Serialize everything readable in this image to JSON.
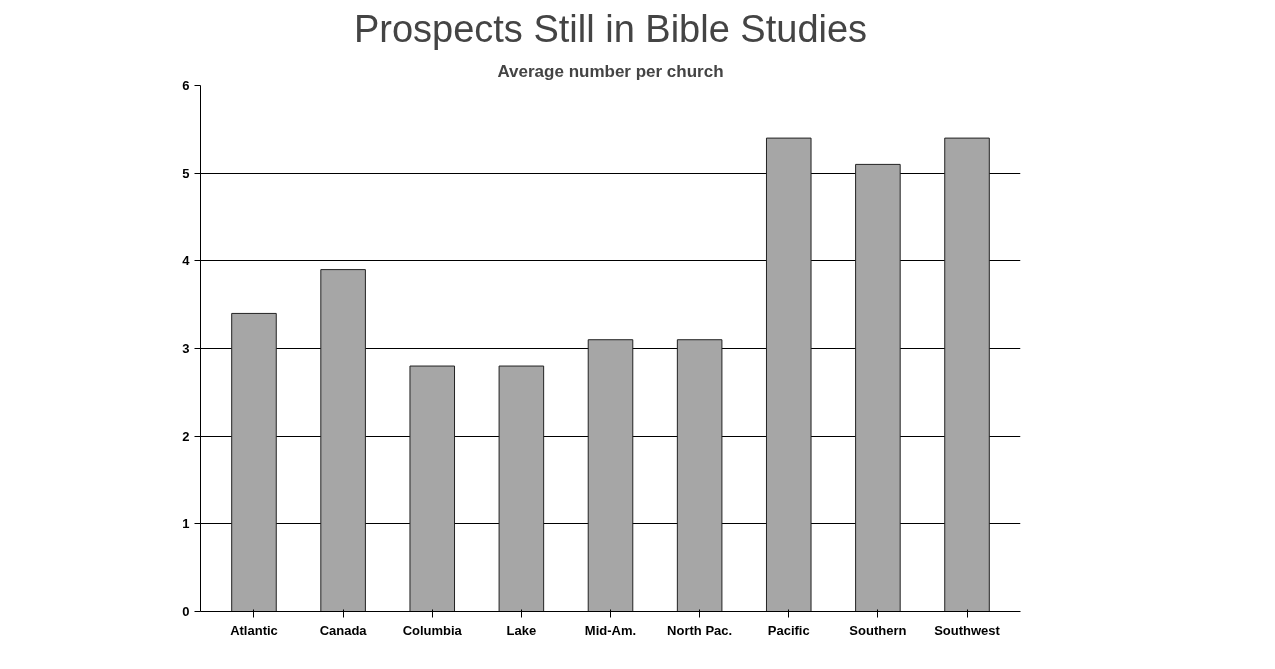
{
  "chart_data": {
    "type": "bar",
    "title": "Prospects Still in Bible Studies",
    "subtitle": "Average number per church",
    "categories": [
      "Atlantic",
      "Canada",
      "Columbia",
      "Lake",
      "Mid-Am.",
      "North Pac.",
      "Pacific",
      "Southern",
      "Southwest"
    ],
    "values": [
      3.4,
      3.9,
      2.8,
      2.8,
      3.1,
      3.1,
      5.4,
      5.1,
      5.4
    ],
    "color": "#a6a6a6",
    "ylim": [
      0,
      6
    ],
    "yticks": [
      0,
      1,
      2,
      3,
      4,
      5,
      6
    ],
    "grid": "y"
  }
}
